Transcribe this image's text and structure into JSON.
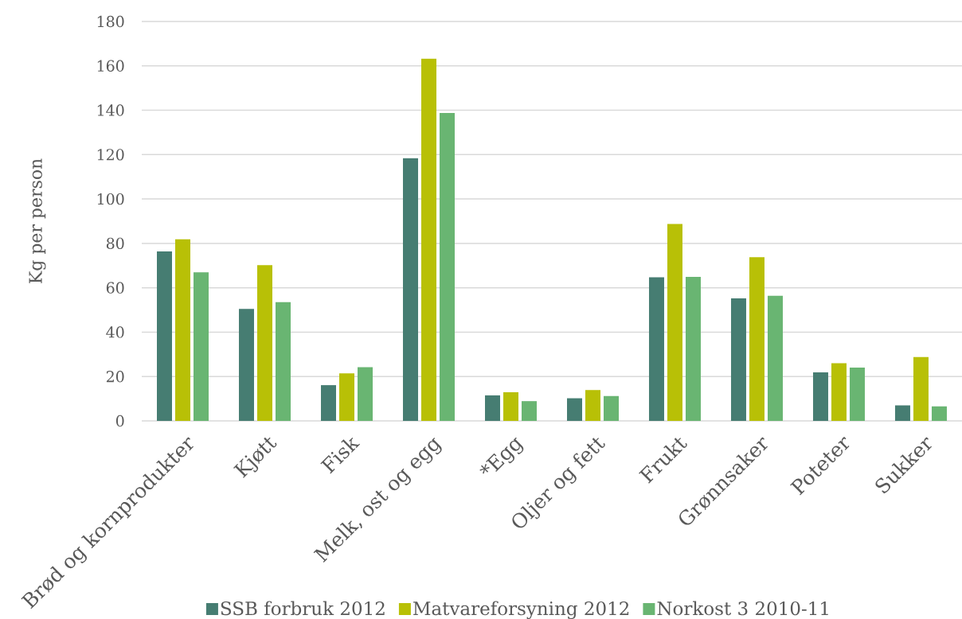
{
  "chart_data": {
    "type": "bar",
    "ylabel": "Kg per person",
    "categories": [
      "Brød og kornprodukter",
      "Kjøtt",
      "Fisk",
      "Melk, ost og egg",
      "*Egg",
      "Oljer og fett",
      "Frukt",
      "Grønnsaker",
      "Poteter",
      "Sukker"
    ],
    "series": [
      {
        "name": "SSB forbruk 2012",
        "color": "#467d72",
        "values": [
          76.4,
          50.5,
          16.1,
          118.4,
          11.5,
          10.2,
          64.7,
          55.2,
          21.9,
          7.0
        ]
      },
      {
        "name": "Matvareforsyning 2012",
        "color": "#b8c006",
        "values": [
          81.8,
          70.2,
          21.4,
          163.2,
          12.9,
          13.9,
          88.7,
          73.8,
          26.0,
          28.8
        ]
      },
      {
        "name": "Norkost 3 2010-11",
        "color": "#69b572",
        "values": [
          67.0,
          53.5,
          24.2,
          138.8,
          8.9,
          11.2,
          64.9,
          56.4,
          24.0,
          6.5
        ]
      }
    ],
    "ylim": [
      0,
      180
    ],
    "yticks": [
      0,
      20,
      40,
      60,
      80,
      100,
      120,
      140,
      160,
      180
    ],
    "grid": "y",
    "legend": "bottom"
  }
}
